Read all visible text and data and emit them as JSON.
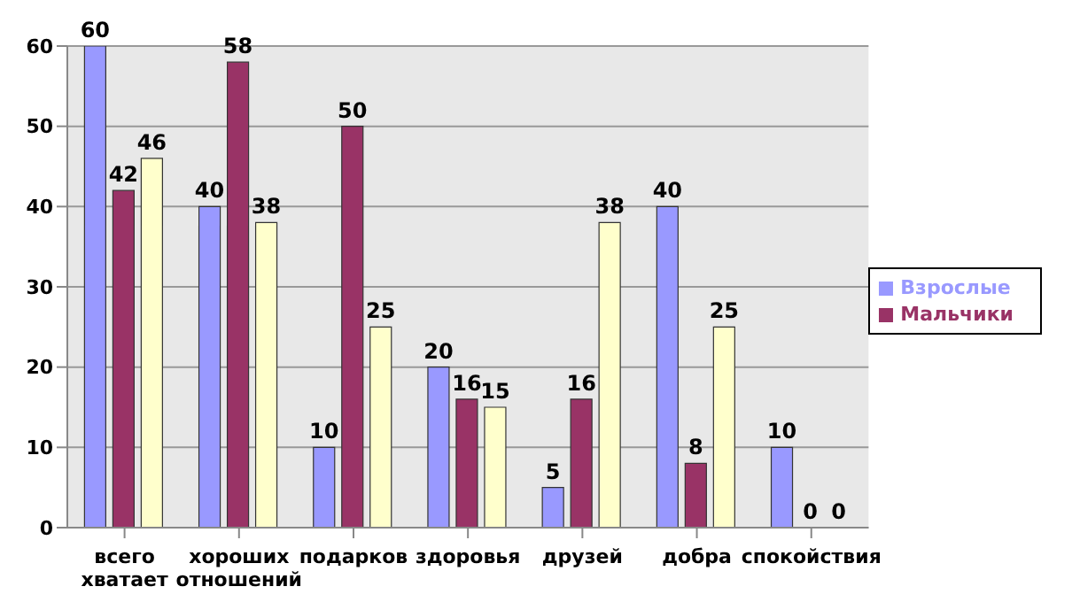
{
  "chart_data": {
    "type": "bar",
    "categories": [
      "всего хватает",
      "хороших отношений",
      "подарков",
      "здоровья",
      "друзей",
      "добра",
      "спокойствия"
    ],
    "series": [
      {
        "name": "Взрослые",
        "color": "#9999ff",
        "values": [
          60,
          40,
          10,
          20,
          5,
          40,
          10
        ]
      },
      {
        "name": "Мальчики",
        "color": "#993366",
        "values": [
          42,
          58,
          50,
          16,
          16,
          8,
          0
        ]
      },
      {
        "color": "#ffffcc",
        "values": [
          46,
          38,
          25,
          15,
          38,
          25,
          0
        ]
      }
    ],
    "ylim": [
      0,
      60
    ],
    "yticks": [
      0,
      10,
      20,
      30,
      40,
      50,
      60
    ],
    "grid": "y",
    "legend": "right",
    "data_labels": true
  }
}
